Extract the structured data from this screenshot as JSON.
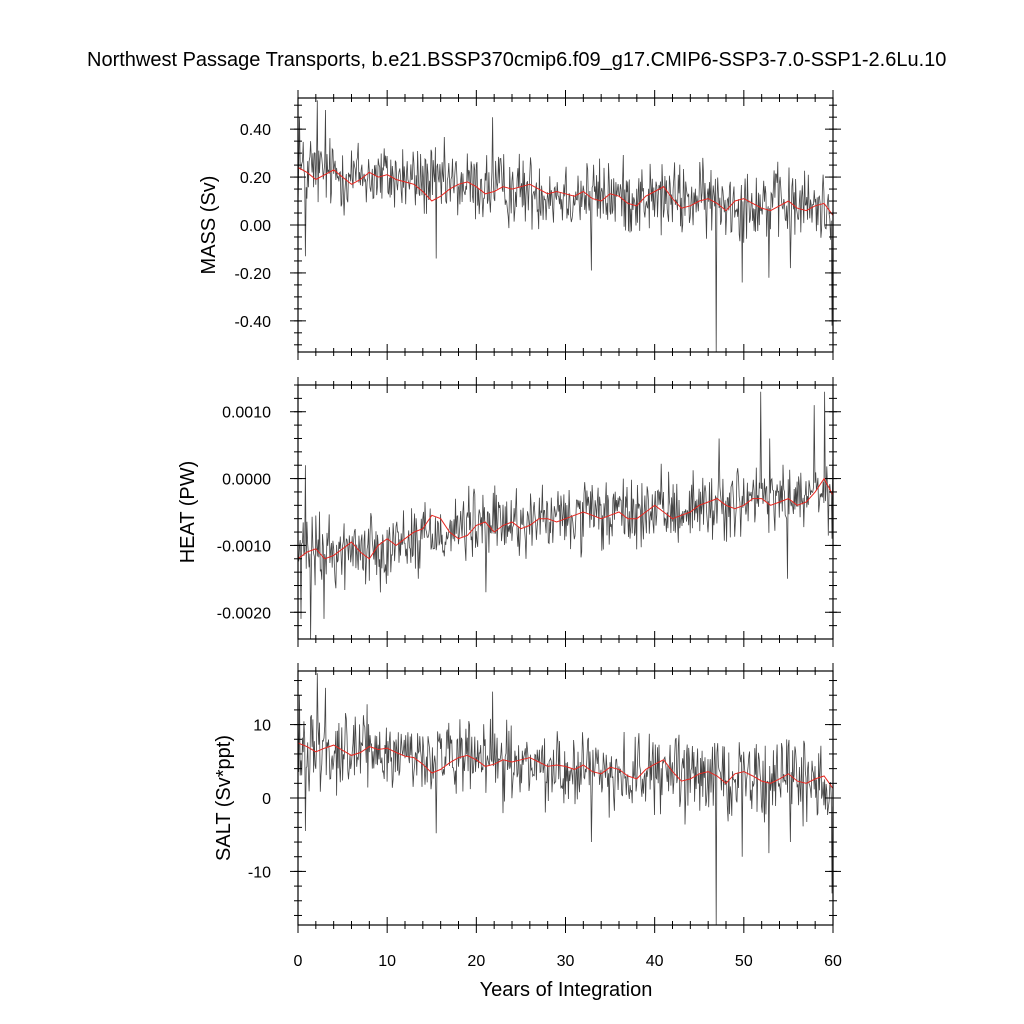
{
  "title": "Northwest Passage Transports, b.e21.BSSP370cmip6.f09_g17.CMIP6-SSP3-7.0-SSP1-2.6Lu.10",
  "xlabel": "Years of Integration",
  "colors": {
    "raw": "#444444",
    "smooth": "#e8261f",
    "axis": "#000000"
  },
  "chart_data": [
    {
      "type": "line",
      "ylabel": "MASS (Sv)",
      "xlim": [
        0,
        60
      ],
      "ylim": [
        -0.53,
        0.53
      ],
      "xticks": [
        0,
        10,
        20,
        30,
        40,
        50,
        60
      ],
      "xtick_labels": [
        "0",
        "10",
        "20",
        "30",
        "40",
        "50",
        "60"
      ],
      "yticks": [
        0.4,
        0.2,
        0.0,
        -0.2,
        -0.4
      ],
      "ytick_labels": [
        "0.40",
        "0.20",
        "0.00",
        "-0.20",
        "-0.40"
      ],
      "yminor_step": 0.05,
      "grid": false,
      "series": [
        {
          "role": "monthly",
          "x_start": 0,
          "x_step": 0.0833,
          "trend": [
            [
              0,
              0.22
            ],
            [
              10,
              0.2
            ],
            [
              20,
              0.16
            ],
            [
              30,
              0.13
            ],
            [
              40,
              0.11
            ],
            [
              50,
              0.1
            ],
            [
              60,
              0.07
            ]
          ],
          "noise": 0.075,
          "spikes": [
            [
              0.2,
              0.45
            ],
            [
              0.8,
              -0.13
            ],
            [
              1.4,
              0.35
            ],
            [
              2.2,
              0.52
            ],
            [
              3.1,
              0.48
            ],
            [
              15.5,
              -0.14
            ],
            [
              21.8,
              0.45
            ],
            [
              32.9,
              -0.19
            ],
            [
              46.9,
              -0.53
            ],
            [
              49.8,
              -0.24
            ],
            [
              52.8,
              -0.22
            ],
            [
              55.2,
              -0.18
            ],
            [
              59.9,
              -0.42
            ]
          ]
        },
        {
          "role": "smoothed",
          "x": [
            0,
            1,
            2,
            3,
            4,
            5,
            6,
            7,
            8,
            9,
            10,
            11,
            12,
            13,
            14,
            15,
            16,
            17,
            18,
            19,
            20,
            21,
            22,
            23,
            24,
            25,
            26,
            27,
            28,
            29,
            30,
            31,
            32,
            33,
            34,
            35,
            36,
            37,
            38,
            39,
            40,
            41,
            42,
            43,
            44,
            45,
            46,
            47,
            48,
            49,
            50,
            51,
            52,
            53,
            54,
            55,
            56,
            57,
            58,
            59,
            60
          ],
          "values": [
            0.24,
            0.22,
            0.19,
            0.21,
            0.23,
            0.2,
            0.17,
            0.19,
            0.22,
            0.2,
            0.21,
            0.19,
            0.18,
            0.17,
            0.14,
            0.1,
            0.12,
            0.15,
            0.17,
            0.18,
            0.16,
            0.13,
            0.14,
            0.16,
            0.15,
            0.16,
            0.17,
            0.15,
            0.13,
            0.14,
            0.13,
            0.12,
            0.14,
            0.11,
            0.1,
            0.13,
            0.12,
            0.09,
            0.08,
            0.12,
            0.14,
            0.16,
            0.11,
            0.07,
            0.08,
            0.1,
            0.11,
            0.09,
            0.06,
            0.1,
            0.11,
            0.09,
            0.07,
            0.06,
            0.08,
            0.1,
            0.07,
            0.06,
            0.08,
            0.09,
            0.04
          ]
        }
      ]
    },
    {
      "type": "line",
      "ylabel": "HEAT (PW)",
      "xlim": [
        0,
        60
      ],
      "ylim": [
        -0.0024,
        0.0014
      ],
      "xticks": [
        0,
        10,
        20,
        30,
        40,
        50,
        60
      ],
      "xtick_labels": [
        "0",
        "10",
        "20",
        "30",
        "40",
        "50",
        "60"
      ],
      "yticks": [
        0.001,
        0.0,
        -0.001,
        -0.002
      ],
      "ytick_labels": [
        "0.0010",
        "0.0000",
        "-0.0010",
        "-0.0020"
      ],
      "yminor_step": 0.0002,
      "grid": false,
      "series": [
        {
          "role": "monthly",
          "x_start": 0,
          "x_step": 0.0833,
          "trend": [
            [
              0,
              -0.0011
            ],
            [
              5,
              -0.0011
            ],
            [
              10,
              -0.001
            ],
            [
              15,
              -0.0008
            ],
            [
              20,
              -0.0007
            ],
            [
              30,
              -0.0006
            ],
            [
              40,
              -0.0005
            ],
            [
              50,
              -0.00035
            ],
            [
              60,
              -0.00025
            ]
          ],
          "noise": 0.00026,
          "spikes": [
            [
              0.3,
              -0.0021
            ],
            [
              0.8,
              0.0002
            ],
            [
              1.4,
              -0.0024
            ],
            [
              2.9,
              -0.0021
            ],
            [
              13.5,
              -0.0015
            ],
            [
              21.1,
              -0.0017
            ],
            [
              47.2,
              0.0006
            ],
            [
              51.9,
              0.0013
            ],
            [
              52.9,
              0.0006
            ],
            [
              54.9,
              -0.0015
            ],
            [
              57.9,
              0.0011
            ],
            [
              59.1,
              0.0013
            ],
            [
              59.9,
              -0.0009
            ]
          ]
        },
        {
          "role": "smoothed",
          "x": [
            0,
            1,
            2,
            3,
            4,
            5,
            6,
            7,
            8,
            9,
            10,
            11,
            12,
            13,
            14,
            15,
            16,
            17,
            18,
            19,
            20,
            21,
            22,
            23,
            24,
            25,
            26,
            27,
            28,
            29,
            30,
            31,
            32,
            33,
            34,
            35,
            36,
            37,
            38,
            39,
            40,
            41,
            42,
            43,
            44,
            45,
            46,
            47,
            48,
            49,
            50,
            51,
            52,
            53,
            54,
            55,
            56,
            57,
            58,
            59,
            60
          ],
          "values": [
            -0.0012,
            -0.0011,
            -0.00105,
            -0.0012,
            -0.00115,
            -0.00105,
            -0.00095,
            -0.0011,
            -0.0012,
            -0.001,
            -0.0009,
            -0.001,
            -0.0009,
            -0.0008,
            -0.00075,
            -0.00055,
            -0.0006,
            -0.0008,
            -0.0009,
            -0.00085,
            -0.0007,
            -0.00065,
            -0.0008,
            -0.0007,
            -0.00065,
            -0.00075,
            -0.0007,
            -0.0006,
            -0.0006,
            -0.00065,
            -0.0006,
            -0.00055,
            -0.0005,
            -0.00055,
            -0.0006,
            -0.00055,
            -0.0005,
            -0.0006,
            -0.0006,
            -0.0005,
            -0.0004,
            -0.0005,
            -0.0006,
            -0.00055,
            -0.0005,
            -0.0004,
            -0.00035,
            -0.0003,
            -0.0004,
            -0.00045,
            -0.0004,
            -0.0003,
            -0.0003,
            -0.0004,
            -0.00035,
            -0.0003,
            -0.0004,
            -0.00035,
            -0.0002,
            0.0,
            -0.00025
          ]
        }
      ]
    },
    {
      "type": "line",
      "ylabel": "SALT (Sv*ppt)",
      "xlim": [
        0,
        60
      ],
      "ylim": [
        -17.3,
        17.3
      ],
      "xticks": [
        0,
        10,
        20,
        30,
        40,
        50,
        60
      ],
      "xtick_labels": [
        "0",
        "10",
        "20",
        "30",
        "40",
        "50",
        "60"
      ],
      "yticks": [
        10,
        0,
        -10
      ],
      "ytick_labels": [
        "10",
        "0",
        "-10"
      ],
      "yminor_step": 2,
      "grid": false,
      "series": [
        {
          "role": "monthly",
          "x_start": 0,
          "x_step": 0.0833,
          "trend": [
            [
              0,
              7
            ],
            [
              10,
              6.2
            ],
            [
              20,
              5
            ],
            [
              30,
              4
            ],
            [
              40,
              3.3
            ],
            [
              50,
              3
            ],
            [
              60,
              2
            ]
          ],
          "noise": 2.5,
          "spikes": [
            [
              0.2,
              14
            ],
            [
              0.8,
              -4.5
            ],
            [
              1.4,
              11
            ],
            [
              2.2,
              17
            ],
            [
              3.1,
              15
            ],
            [
              15.5,
              -4.8
            ],
            [
              21.8,
              14.5
            ],
            [
              32.9,
              -6
            ],
            [
              46.9,
              -17.3
            ],
            [
              49.8,
              -8
            ],
            [
              52.8,
              -7.5
            ],
            [
              55.2,
              -6
            ],
            [
              59.9,
              -13
            ]
          ]
        },
        {
          "role": "smoothed",
          "x": [
            0,
            1,
            2,
            3,
            4,
            5,
            6,
            7,
            8,
            9,
            10,
            11,
            12,
            13,
            14,
            15,
            16,
            17,
            18,
            19,
            20,
            21,
            22,
            23,
            24,
            25,
            26,
            27,
            28,
            29,
            30,
            31,
            32,
            33,
            34,
            35,
            36,
            37,
            38,
            39,
            40,
            41,
            42,
            43,
            44,
            45,
            46,
            47,
            48,
            49,
            50,
            51,
            52,
            53,
            54,
            55,
            56,
            57,
            58,
            59,
            60
          ],
          "values": [
            7.5,
            7,
            6.3,
            6.8,
            7.2,
            6.5,
            5.8,
            6.2,
            7,
            6.6,
            6.8,
            6.2,
            5.7,
            5.5,
            4.6,
            3.4,
            3.9,
            4.8,
            5.5,
            5.8,
            5.2,
            4.3,
            4.6,
            5.2,
            4.9,
            5.2,
            5.5,
            4.9,
            4.3,
            4.5,
            4.3,
            3.9,
            4.5,
            3.6,
            3.3,
            4.2,
            3.9,
            3,
            2.6,
            3.9,
            4.6,
            5.2,
            3.6,
            2.3,
            2.6,
            3.3,
            3.6,
            3,
            2,
            3.3,
            3.6,
            3,
            2.3,
            2,
            2.6,
            3.3,
            2.3,
            2,
            2.6,
            3,
            1.3
          ]
        }
      ]
    }
  ]
}
